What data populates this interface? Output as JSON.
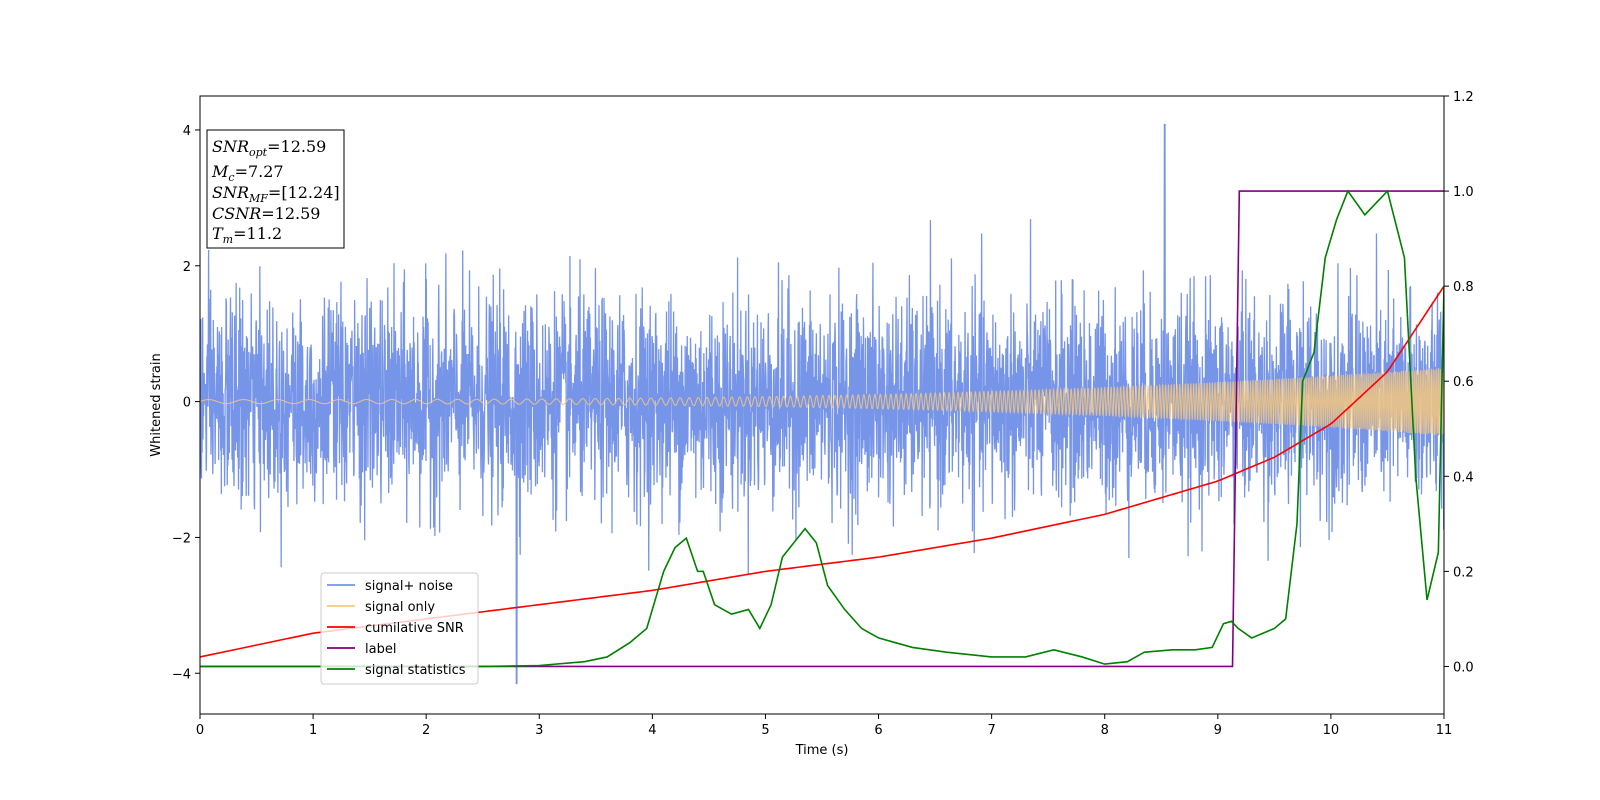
{
  "chart_data": {
    "type": "line",
    "xlabel": "Time (s)",
    "ylabel": "Whitened strain",
    "xlim": [
      0,
      11
    ],
    "ylim": [
      -4.6,
      4.5
    ],
    "y2lim": [
      -0.1,
      1.2
    ],
    "x_ticks": [
      "0",
      "1",
      "2",
      "3",
      "4",
      "5",
      "6",
      "7",
      "8",
      "9",
      "10",
      "11"
    ],
    "y_ticks": [
      "−4",
      "−2",
      "0",
      "2",
      "4"
    ],
    "y2_ticks": [
      "0.0",
      "0.2",
      "0.4",
      "0.6",
      "0.8",
      "1.0",
      "1.2"
    ],
    "legend_position": "lower-left",
    "annotation": [
      {
        "main": "SNR",
        "sub": "opt",
        "rest": "=12.59"
      },
      {
        "main": "M",
        "sub": "c",
        "rest": "=7.27"
      },
      {
        "main": "SNR",
        "sub": "MF",
        "rest": "=[12.24]"
      },
      {
        "main": "CSNR",
        "sub": "",
        "rest": "=12.59"
      },
      {
        "main": "T",
        "sub": "m",
        "rest": "=11.2"
      }
    ],
    "series": [
      {
        "name": "signal+ noise",
        "color": "#7694e8",
        "axis": "left",
        "kind": "noise",
        "std": 0.75,
        "min": -4.15,
        "max": 4.08,
        "peak_x": 8.53
      },
      {
        "name": "signal only",
        "color": "#f5c77e",
        "axis": "left",
        "kind": "chirp",
        "amplitude_start": 0.03,
        "amplitude_end": 0.5
      },
      {
        "name": "cumilative SNR",
        "color": "#ff0000",
        "axis": "right",
        "x": [
          0,
          1,
          2,
          3,
          4,
          5,
          6,
          7,
          8,
          9,
          9.5,
          10,
          10.5,
          11
        ],
        "y": [
          0.02,
          0.07,
          0.1,
          0.13,
          0.16,
          0.2,
          0.23,
          0.27,
          0.32,
          0.39,
          0.44,
          0.51,
          0.62,
          0.8
        ]
      },
      {
        "name": "label",
        "color": "#800080",
        "axis": "right",
        "x": [
          0,
          9.13,
          9.19,
          11
        ],
        "y": [
          0.0,
          0.0,
          1.0,
          1.0
        ]
      },
      {
        "name": "signal statistics",
        "color": "#008000",
        "axis": "right",
        "x": [
          0,
          0.5,
          1,
          1.5,
          2,
          2.5,
          3,
          3.4,
          3.6,
          3.8,
          3.95,
          4.1,
          4.2,
          4.3,
          4.4,
          4.45,
          4.55,
          4.7,
          4.85,
          4.95,
          5.05,
          5.15,
          5.25,
          5.35,
          5.45,
          5.55,
          5.7,
          5.85,
          6.0,
          6.3,
          6.6,
          7.0,
          7.3,
          7.55,
          7.8,
          8.0,
          8.2,
          8.35,
          8.6,
          8.8,
          8.95,
          9.05,
          9.12,
          9.18,
          9.3,
          9.5,
          9.6,
          9.7,
          9.75,
          9.85,
          9.95,
          10.05,
          10.15,
          10.3,
          10.5,
          10.65,
          10.75,
          10.85,
          10.95,
          11
        ],
        "y": [
          0.0,
          0.0,
          0.0,
          0.0,
          0.0,
          0.0,
          0.002,
          0.01,
          0.02,
          0.05,
          0.08,
          0.2,
          0.25,
          0.27,
          0.2,
          0.2,
          0.13,
          0.11,
          0.12,
          0.08,
          0.13,
          0.23,
          0.26,
          0.29,
          0.26,
          0.17,
          0.12,
          0.08,
          0.06,
          0.04,
          0.03,
          0.02,
          0.02,
          0.035,
          0.02,
          0.005,
          0.01,
          0.03,
          0.035,
          0.035,
          0.04,
          0.09,
          0.095,
          0.08,
          0.06,
          0.08,
          0.1,
          0.3,
          0.6,
          0.66,
          0.86,
          0.94,
          1.0,
          0.95,
          1.0,
          0.86,
          0.4,
          0.14,
          0.24,
          0.8
        ]
      }
    ]
  }
}
